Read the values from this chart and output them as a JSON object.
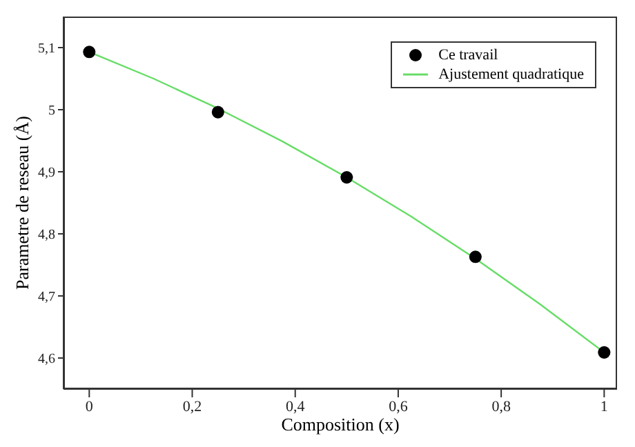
{
  "chart_data": {
    "type": "scatter",
    "xlabel": "Composition (x)",
    "ylabel": "Parametre de reseau (Å)",
    "x": [
      0,
      0.25,
      0.5,
      0.75,
      1
    ],
    "series": [
      {
        "name": "Ce travail",
        "color": "#000000",
        "marker": "circle",
        "values": [
          5.093,
          4.996,
          4.891,
          4.763,
          4.609
        ]
      },
      {
        "name": "Ajustement quadratique",
        "type": "line",
        "color": "#66dd66",
        "marker": "none",
        "x": [
          0,
          0.125,
          0.25,
          0.375,
          0.5,
          0.625,
          0.75,
          0.875,
          1
        ],
        "values": [
          5.093,
          5.05,
          5.002,
          4.949,
          4.891,
          4.828,
          4.76,
          4.687,
          4.609
        ]
      }
    ],
    "xlim": [
      -0.05,
      1.025
    ],
    "xticks": [
      {
        "value": 0,
        "label": "0"
      },
      {
        "value": 0.2,
        "label": "0,2"
      },
      {
        "value": 0.4,
        "label": "0,4"
      },
      {
        "value": 0.6,
        "label": "0,6"
      },
      {
        "value": 0.8,
        "label": "0,8"
      },
      {
        "value": 1,
        "label": "1"
      }
    ],
    "ylim": [
      4.55,
      5.15
    ],
    "yticks": [
      {
        "value": 4.6,
        "label": "4,6"
      },
      {
        "value": 4.7,
        "label": "4,7"
      },
      {
        "value": 4.8,
        "label": "4,8"
      },
      {
        "value": 4.9,
        "label": "4,9"
      },
      {
        "value": 5,
        "label": "5"
      },
      {
        "value": 5.1,
        "label": "5,1"
      }
    ],
    "grid": false,
    "legend": "top right"
  }
}
